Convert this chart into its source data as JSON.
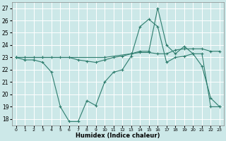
{
  "xlabel": "Humidex (Indice chaleur)",
  "bg_color": "#cce8e8",
  "grid_color": "#ffffff",
  "line_color": "#2e7d6e",
  "xlim": [
    -0.5,
    23.5
  ],
  "ylim": [
    17.5,
    27.5
  ],
  "yticks": [
    18,
    19,
    20,
    21,
    22,
    23,
    24,
    25,
    26,
    27
  ],
  "xticks": [
    0,
    1,
    2,
    3,
    4,
    5,
    6,
    7,
    8,
    9,
    10,
    11,
    12,
    13,
    14,
    15,
    16,
    17,
    18,
    19,
    20,
    21,
    22,
    23
  ],
  "line1_x": [
    0,
    1,
    2,
    3,
    4,
    5,
    6,
    7,
    8,
    9,
    10,
    11,
    12,
    13,
    14,
    15,
    16,
    17,
    18,
    19,
    20,
    21,
    22,
    23
  ],
  "line1_y": [
    23.0,
    22.8,
    22.8,
    22.6,
    21.8,
    19.0,
    17.8,
    17.8,
    19.5,
    19.1,
    21.0,
    21.8,
    22.0,
    23.1,
    25.5,
    26.1,
    25.5,
    22.6,
    23.0,
    23.1,
    23.3,
    22.3,
    19.7,
    19.0
  ],
  "line2_x": [
    0,
    1,
    2,
    3,
    4,
    5,
    6,
    7,
    8,
    9,
    10,
    11,
    12,
    13,
    14,
    15,
    16,
    17,
    18,
    19,
    20,
    21,
    22,
    23
  ],
  "line2_y": [
    23.0,
    23.0,
    23.0,
    23.0,
    23.0,
    23.0,
    23.0,
    22.8,
    22.7,
    22.6,
    22.8,
    23.0,
    23.1,
    23.3,
    23.4,
    23.4,
    23.3,
    23.3,
    23.6,
    23.7,
    23.7,
    23.7,
    23.5,
    23.5
  ],
  "line3_x": [
    0,
    3,
    10,
    13,
    14,
    15,
    16,
    17,
    18,
    19,
    20,
    21,
    22,
    23
  ],
  "line3_y": [
    23.0,
    23.0,
    23.0,
    23.3,
    23.5,
    23.5,
    27.0,
    24.0,
    23.3,
    23.9,
    23.3,
    23.3,
    19.0,
    19.0
  ]
}
